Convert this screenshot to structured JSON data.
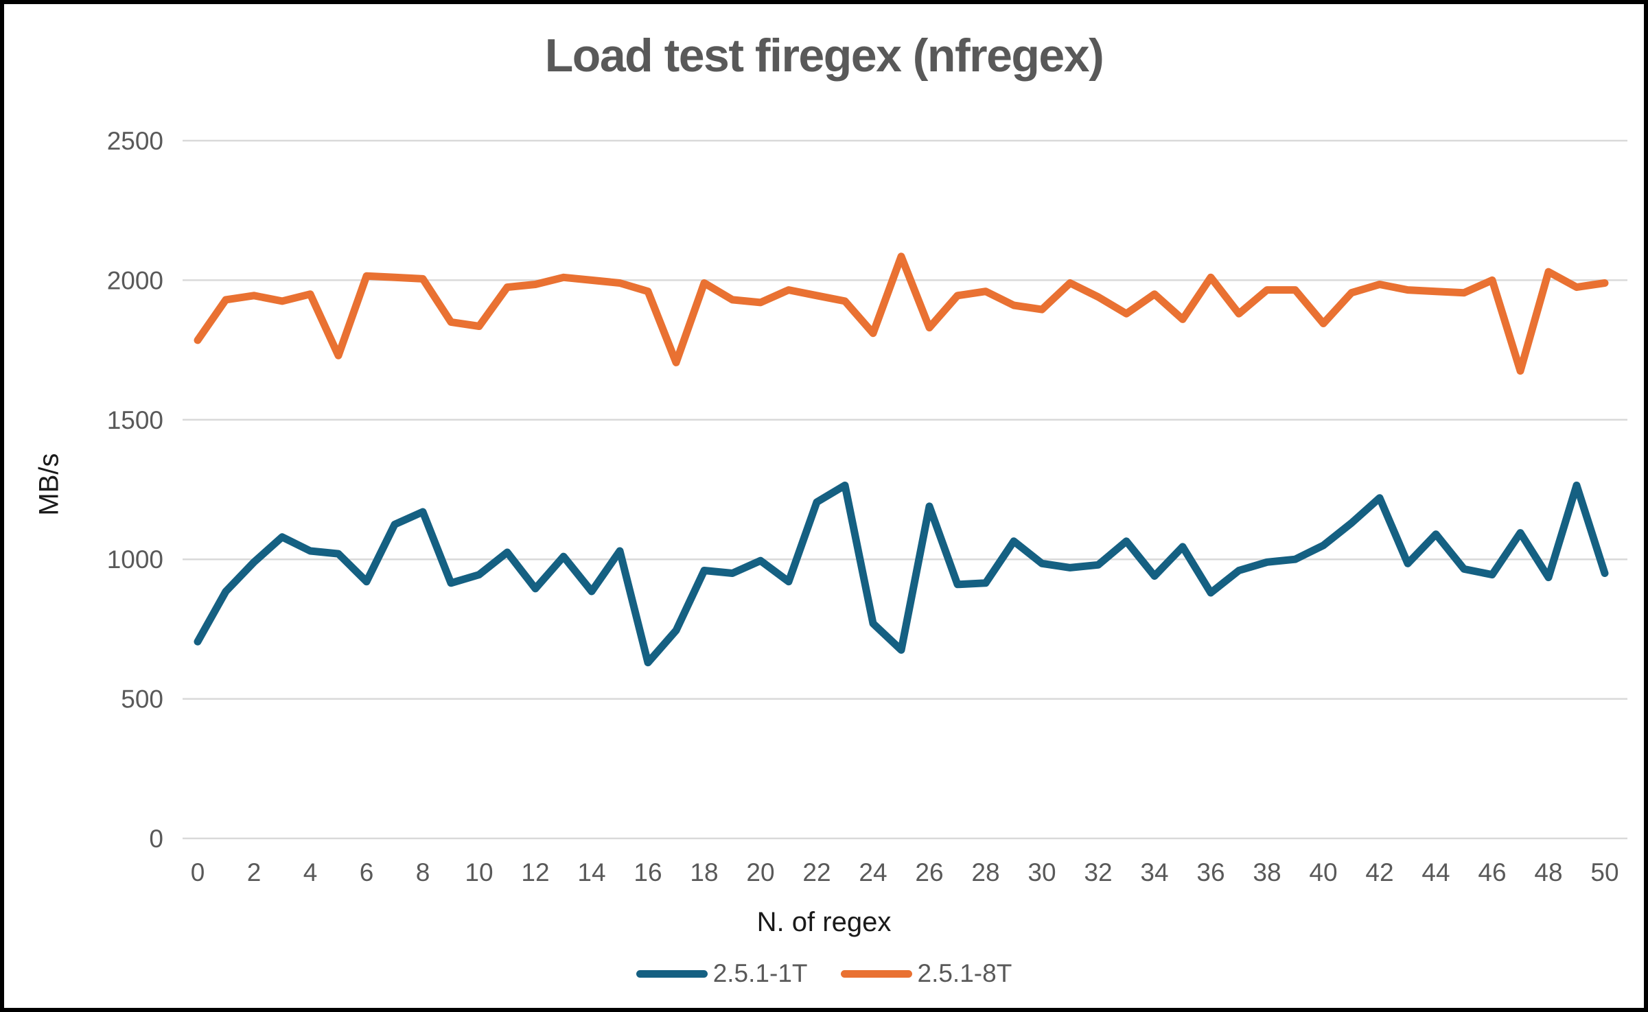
{
  "chart_data": {
    "type": "line",
    "title": "Load test firegex (nfregex)",
    "xlabel": "N. of regex",
    "ylabel": "MB/s",
    "x": [
      0,
      1,
      2,
      3,
      4,
      5,
      6,
      7,
      8,
      9,
      10,
      11,
      12,
      13,
      14,
      15,
      16,
      17,
      18,
      19,
      20,
      21,
      22,
      23,
      24,
      25,
      26,
      27,
      28,
      29,
      30,
      31,
      32,
      33,
      34,
      35,
      36,
      37,
      38,
      39,
      40,
      41,
      42,
      43,
      44,
      45,
      46,
      47,
      48,
      49,
      50
    ],
    "xtick_step": 2,
    "ylim": [
      0,
      2500
    ],
    "yticks": [
      0,
      500,
      1000,
      1500,
      2000,
      2500
    ],
    "grid": true,
    "legend_position": "bottom",
    "series": [
      {
        "name": "2.5.1-1T",
        "color": "#156082",
        "values": [
          705,
          885,
          990,
          1080,
          1030,
          1020,
          920,
          1125,
          1170,
          915,
          945,
          1025,
          895,
          1010,
          885,
          1030,
          630,
          745,
          960,
          950,
          995,
          920,
          1205,
          1265,
          770,
          675,
          1190,
          910,
          915,
          1065,
          985,
          970,
          980,
          1065,
          940,
          1045,
          880,
          960,
          990,
          1000,
          1050,
          1130,
          1220,
          985,
          1090,
          965,
          945,
          1095,
          935,
          1265,
          950
        ]
      },
      {
        "name": "2.5.1-8T",
        "color": "#E97132",
        "values": [
          1785,
          1930,
          1945,
          1925,
          1950,
          1730,
          2015,
          2010,
          2005,
          1850,
          1835,
          1975,
          1985,
          2010,
          2000,
          1990,
          1960,
          1705,
          1990,
          1930,
          1920,
          1965,
          1945,
          1925,
          1810,
          2085,
          1830,
          1945,
          1960,
          1910,
          1895,
          1990,
          1940,
          1880,
          1950,
          1860,
          2010,
          1880,
          1965,
          1965,
          1845,
          1955,
          1985,
          1965,
          1960,
          1955,
          2000,
          1675,
          2030,
          1975,
          1990
        ]
      }
    ]
  },
  "style": {
    "background": "#FFFFFF",
    "border_color": "#000000",
    "gridline_color": "#D9D9D9",
    "tick_label_color": "#595959",
    "title_color": "#595959",
    "axis_title_color": "#1A1A1A",
    "legend_text_color": "#595959"
  }
}
